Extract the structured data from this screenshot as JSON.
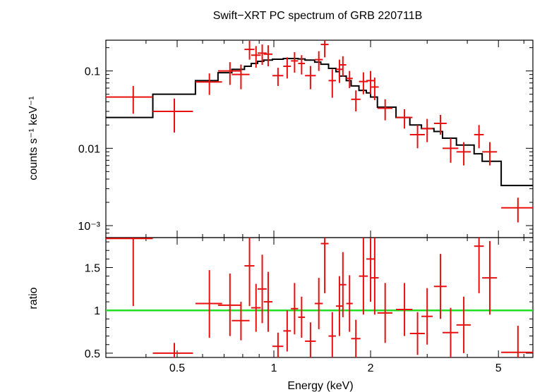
{
  "chart_data": [
    {
      "type": "line",
      "title": "Swift−XRT PC spectrum of GRB 220711B",
      "ylabel": "counts s⁻¹ keV⁻¹",
      "xlabel": "",
      "xscale": "log",
      "yscale": "log",
      "xlim": [
        0.3,
        6.4
      ],
      "ylim": [
        0.0007,
        0.25
      ],
      "yticks": [
        {
          "value": 0.1,
          "label": "0.1"
        },
        {
          "value": 0.01,
          "label": "0.01"
        },
        {
          "value": 0.001,
          "label": "10⁻³"
        }
      ],
      "colors": {
        "data": "#e8100f",
        "model": "#000000"
      },
      "data_points": [
        {
          "x": 0.365,
          "xlo": 0.3,
          "xhi": 0.42,
          "y": 0.046,
          "ylo": 0.028,
          "yhi": 0.064
        },
        {
          "x": 0.49,
          "xlo": 0.42,
          "xhi": 0.56,
          "y": 0.03,
          "ylo": 0.016,
          "yhi": 0.044
        },
        {
          "x": 0.63,
          "xlo": 0.57,
          "xhi": 0.69,
          "y": 0.072,
          "ylo": 0.049,
          "yhi": 0.093
        },
        {
          "x": 0.73,
          "xlo": 0.67,
          "xhi": 0.79,
          "y": 0.1,
          "ylo": 0.066,
          "yhi": 0.13
        },
        {
          "x": 0.79,
          "xlo": 0.74,
          "xhi": 0.84,
          "y": 0.09,
          "ylo": 0.058,
          "yhi": 0.121
        },
        {
          "x": 0.84,
          "xlo": 0.81,
          "xhi": 0.87,
          "y": 0.19,
          "ylo": 0.14,
          "yhi": 0.245
        },
        {
          "x": 0.88,
          "xlo": 0.85,
          "xhi": 0.91,
          "y": 0.16,
          "ylo": 0.11,
          "yhi": 0.21
        },
        {
          "x": 0.92,
          "xlo": 0.89,
          "xhi": 0.95,
          "y": 0.17,
          "ylo": 0.12,
          "yhi": 0.22
        },
        {
          "x": 0.96,
          "xlo": 0.93,
          "xhi": 0.99,
          "y": 0.165,
          "ylo": 0.115,
          "yhi": 0.215
        },
        {
          "x": 1.03,
          "xlo": 0.99,
          "xhi": 1.07,
          "y": 0.087,
          "ylo": 0.064,
          "yhi": 0.11
        },
        {
          "x": 1.1,
          "xlo": 1.07,
          "xhi": 1.13,
          "y": 0.115,
          "ylo": 0.08,
          "yhi": 0.15
        },
        {
          "x": 1.16,
          "xlo": 1.13,
          "xhi": 1.19,
          "y": 0.135,
          "ylo": 0.095,
          "yhi": 0.175
        },
        {
          "x": 1.22,
          "xlo": 1.19,
          "xhi": 1.25,
          "y": 0.125,
          "ylo": 0.09,
          "yhi": 0.16
        },
        {
          "x": 1.3,
          "xlo": 1.25,
          "xhi": 1.35,
          "y": 0.087,
          "ylo": 0.058,
          "yhi": 0.116
        },
        {
          "x": 1.38,
          "xlo": 1.34,
          "xhi": 1.42,
          "y": 0.14,
          "ylo": 0.1,
          "yhi": 0.18
        },
        {
          "x": 1.44,
          "xlo": 1.4,
          "xhi": 1.48,
          "y": 0.22,
          "ylo": 0.15,
          "yhi": 0.285
        },
        {
          "x": 1.52,
          "xlo": 1.48,
          "xhi": 1.56,
          "y": 0.075,
          "ylo": 0.045,
          "yhi": 0.105
        },
        {
          "x": 1.6,
          "xlo": 1.56,
          "xhi": 1.64,
          "y": 0.105,
          "ylo": 0.07,
          "yhi": 0.14
        },
        {
          "x": 1.64,
          "xlo": 1.6,
          "xhi": 1.68,
          "y": 0.12,
          "ylo": 0.085,
          "yhi": 0.155
        },
        {
          "x": 1.72,
          "xlo": 1.68,
          "xhi": 1.76,
          "y": 0.08,
          "ylo": 0.06,
          "yhi": 0.1
        },
        {
          "x": 1.8,
          "xlo": 1.74,
          "xhi": 1.86,
          "y": 0.043,
          "ylo": 0.03,
          "yhi": 0.056
        },
        {
          "x": 1.9,
          "xlo": 1.84,
          "xhi": 1.96,
          "y": 0.073,
          "ylo": 0.05,
          "yhi": 0.096
        },
        {
          "x": 2.0,
          "xlo": 1.94,
          "xhi": 2.06,
          "y": 0.075,
          "ylo": 0.05,
          "yhi": 0.1
        },
        {
          "x": 2.06,
          "xlo": 2.0,
          "xhi": 2.12,
          "y": 0.062,
          "ylo": 0.042,
          "yhi": 0.082
        },
        {
          "x": 2.22,
          "xlo": 2.1,
          "xhi": 2.34,
          "y": 0.033,
          "ylo": 0.023,
          "yhi": 0.043
        },
        {
          "x": 2.55,
          "xlo": 2.4,
          "xhi": 2.7,
          "y": 0.025,
          "ylo": 0.018,
          "yhi": 0.032
        },
        {
          "x": 2.8,
          "xlo": 2.65,
          "xhi": 2.95,
          "y": 0.015,
          "ylo": 0.01,
          "yhi": 0.02
        },
        {
          "x": 3.0,
          "xlo": 2.88,
          "xhi": 3.12,
          "y": 0.018,
          "ylo": 0.012,
          "yhi": 0.024
        },
        {
          "x": 3.3,
          "xlo": 3.15,
          "xhi": 3.45,
          "y": 0.021,
          "ylo": 0.015,
          "yhi": 0.027
        },
        {
          "x": 3.55,
          "xlo": 3.35,
          "xhi": 3.75,
          "y": 0.01,
          "ylo": 0.0065,
          "yhi": 0.0135
        },
        {
          "x": 3.9,
          "xlo": 3.7,
          "xhi": 4.1,
          "y": 0.009,
          "ylo": 0.006,
          "yhi": 0.012
        },
        {
          "x": 4.35,
          "xlo": 4.2,
          "xhi": 4.5,
          "y": 0.015,
          "ylo": 0.01,
          "yhi": 0.02
        },
        {
          "x": 4.7,
          "xlo": 4.45,
          "xhi": 4.95,
          "y": 0.009,
          "ylo": 0.006,
          "yhi": 0.012
        },
        {
          "x": 5.75,
          "xlo": 5.1,
          "xhi": 6.4,
          "y": 0.0017,
          "ylo": 0.0011,
          "yhi": 0.0023
        }
      ],
      "model_steps": [
        {
          "x0": 0.3,
          "x1": 0.42,
          "y": 0.025
        },
        {
          "x0": 0.42,
          "x1": 0.57,
          "y": 0.05
        },
        {
          "x0": 0.57,
          "x1": 0.67,
          "y": 0.075
        },
        {
          "x0": 0.67,
          "x1": 0.74,
          "y": 0.095
        },
        {
          "x0": 0.74,
          "x1": 0.81,
          "y": 0.105
        },
        {
          "x0": 0.81,
          "x1": 0.85,
          "y": 0.115
        },
        {
          "x0": 0.85,
          "x1": 0.89,
          "y": 0.125
        },
        {
          "x0": 0.89,
          "x1": 0.93,
          "y": 0.133
        },
        {
          "x0": 0.93,
          "x1": 0.99,
          "y": 0.138
        },
        {
          "x0": 0.99,
          "x1": 1.07,
          "y": 0.142
        },
        {
          "x0": 1.07,
          "x1": 1.19,
          "y": 0.145
        },
        {
          "x0": 1.19,
          "x1": 1.25,
          "y": 0.143
        },
        {
          "x0": 1.25,
          "x1": 1.34,
          "y": 0.138
        },
        {
          "x0": 1.34,
          "x1": 1.4,
          "y": 0.13
        },
        {
          "x0": 1.4,
          "x1": 1.48,
          "y": 0.122
        },
        {
          "x0": 1.48,
          "x1": 1.56,
          "y": 0.108
        },
        {
          "x0": 1.56,
          "x1": 1.6,
          "y": 0.098
        },
        {
          "x0": 1.6,
          "x1": 1.68,
          "y": 0.086
        },
        {
          "x0": 1.68,
          "x1": 1.74,
          "y": 0.075
        },
        {
          "x0": 1.74,
          "x1": 1.84,
          "y": 0.064
        },
        {
          "x0": 1.84,
          "x1": 1.94,
          "y": 0.056
        },
        {
          "x0": 1.94,
          "x1": 2.0,
          "y": 0.052
        },
        {
          "x0": 2.0,
          "x1": 2.1,
          "y": 0.046
        },
        {
          "x0": 2.1,
          "x1": 2.4,
          "y": 0.034
        },
        {
          "x0": 2.4,
          "x1": 2.65,
          "y": 0.025
        },
        {
          "x0": 2.65,
          "x1": 2.88,
          "y": 0.02
        },
        {
          "x0": 2.88,
          "x1": 3.15,
          "y": 0.018
        },
        {
          "x0": 3.15,
          "x1": 3.35,
          "y": 0.0165
        },
        {
          "x0": 3.35,
          "x1": 3.7,
          "y": 0.0135
        },
        {
          "x0": 3.7,
          "x1": 4.2,
          "y": 0.011
        },
        {
          "x0": 4.2,
          "x1": 4.45,
          "y": 0.0085
        },
        {
          "x0": 4.45,
          "x1": 5.1,
          "y": 0.0068
        },
        {
          "x0": 5.1,
          "x1": 6.4,
          "y": 0.0033
        }
      ]
    },
    {
      "type": "scatter",
      "title": "",
      "xlabel": "Energy (keV)",
      "ylabel": "ratio",
      "xscale": "log",
      "xlim": [
        0.3,
        6.4
      ],
      "ylim": [
        0.45,
        1.85
      ],
      "xticks": [
        {
          "value": 0.5,
          "label": "0.5"
        },
        {
          "value": 1,
          "label": "1"
        },
        {
          "value": 2,
          "label": "2"
        },
        {
          "value": 5,
          "label": "5"
        }
      ],
      "yticks": [
        {
          "value": 0.5,
          "label": "0.5"
        },
        {
          "value": 1,
          "label": "1"
        },
        {
          "value": 1.5,
          "label": "1.5"
        }
      ],
      "reference_line": 1,
      "colors": {
        "data": "#e8100f",
        "reference": "#22dd22"
      },
      "data_points": [
        {
          "x": 0.365,
          "xlo": 0.3,
          "xhi": 0.42,
          "y": 1.84,
          "ylo": 1.05,
          "yhi": 1.85
        },
        {
          "x": 0.49,
          "xlo": 0.42,
          "xhi": 0.56,
          "y": 0.5,
          "ylo": 0.45,
          "yhi": 0.62
        },
        {
          "x": 0.63,
          "xlo": 0.57,
          "xhi": 0.69,
          "y": 1.08,
          "ylo": 0.68,
          "yhi": 1.47
        },
        {
          "x": 0.73,
          "xlo": 0.67,
          "xhi": 0.79,
          "y": 1.06,
          "ylo": 0.7,
          "yhi": 1.43
        },
        {
          "x": 0.79,
          "xlo": 0.74,
          "xhi": 0.84,
          "y": 0.88,
          "ylo": 0.65,
          "yhi": 1.1
        },
        {
          "x": 0.84,
          "xlo": 0.81,
          "xhi": 0.87,
          "y": 1.52,
          "ylo": 1.05,
          "yhi": 1.85
        },
        {
          "x": 0.88,
          "xlo": 0.85,
          "xhi": 0.91,
          "y": 1.03,
          "ylo": 0.75,
          "yhi": 1.31
        },
        {
          "x": 0.92,
          "xlo": 0.89,
          "xhi": 0.95,
          "y": 1.25,
          "ylo": 0.85,
          "yhi": 1.65
        },
        {
          "x": 0.96,
          "xlo": 0.93,
          "xhi": 0.99,
          "y": 1.1,
          "ylo": 0.75,
          "yhi": 1.45
        },
        {
          "x": 1.03,
          "xlo": 0.99,
          "xhi": 1.07,
          "y": 0.58,
          "ylo": 0.45,
          "yhi": 0.74
        },
        {
          "x": 1.1,
          "xlo": 1.07,
          "xhi": 1.13,
          "y": 0.76,
          "ylo": 0.52,
          "yhi": 1.0
        },
        {
          "x": 1.16,
          "xlo": 1.13,
          "xhi": 1.19,
          "y": 1.02,
          "ylo": 0.72,
          "yhi": 1.32
        },
        {
          "x": 1.22,
          "xlo": 1.19,
          "xhi": 1.25,
          "y": 0.92,
          "ylo": 0.68,
          "yhi": 1.16
        },
        {
          "x": 1.3,
          "xlo": 1.25,
          "xhi": 1.35,
          "y": 0.64,
          "ylo": 0.45,
          "yhi": 0.86
        },
        {
          "x": 1.38,
          "xlo": 1.34,
          "xhi": 1.42,
          "y": 1.08,
          "ylo": 0.78,
          "yhi": 1.38
        },
        {
          "x": 1.44,
          "xlo": 1.4,
          "xhi": 1.48,
          "y": 1.78,
          "ylo": 1.2,
          "yhi": 1.85
        },
        {
          "x": 1.52,
          "xlo": 1.48,
          "xhi": 1.56,
          "y": 0.7,
          "ylo": 0.45,
          "yhi": 0.98
        },
        {
          "x": 1.6,
          "xlo": 1.56,
          "xhi": 1.64,
          "y": 1.05,
          "ylo": 0.7,
          "yhi": 1.4
        },
        {
          "x": 1.64,
          "xlo": 1.6,
          "xhi": 1.68,
          "y": 1.3,
          "ylo": 0.92,
          "yhi": 1.68
        },
        {
          "x": 1.72,
          "xlo": 1.68,
          "xhi": 1.76,
          "y": 1.08,
          "ylo": 0.75,
          "yhi": 1.41
        },
        {
          "x": 1.8,
          "xlo": 1.74,
          "xhi": 1.86,
          "y": 0.67,
          "ylo": 0.45,
          "yhi": 0.89
        },
        {
          "x": 1.9,
          "xlo": 1.84,
          "xhi": 1.96,
          "y": 1.4,
          "ylo": 0.95,
          "yhi": 1.85
        },
        {
          "x": 2.0,
          "xlo": 1.94,
          "xhi": 2.06,
          "y": 1.6,
          "ylo": 1.1,
          "yhi": 1.85
        },
        {
          "x": 2.06,
          "xlo": 2.0,
          "xhi": 2.12,
          "y": 1.38,
          "ylo": 0.95,
          "yhi": 1.85
        },
        {
          "x": 2.22,
          "xlo": 2.1,
          "xhi": 2.34,
          "y": 0.97,
          "ylo": 0.62,
          "yhi": 1.32
        },
        {
          "x": 2.55,
          "xlo": 2.4,
          "xhi": 2.7,
          "y": 1.01,
          "ylo": 0.7,
          "yhi": 1.32
        },
        {
          "x": 2.8,
          "xlo": 2.65,
          "xhi": 2.95,
          "y": 0.73,
          "ylo": 0.48,
          "yhi": 0.98
        },
        {
          "x": 3.0,
          "xlo": 2.88,
          "xhi": 3.12,
          "y": 0.93,
          "ylo": 0.6,
          "yhi": 1.26
        },
        {
          "x": 3.3,
          "xlo": 3.15,
          "xhi": 3.45,
          "y": 1.28,
          "ylo": 0.9,
          "yhi": 1.66
        },
        {
          "x": 3.55,
          "xlo": 3.35,
          "xhi": 3.75,
          "y": 0.74,
          "ylo": 0.45,
          "yhi": 1.03
        },
        {
          "x": 3.9,
          "xlo": 3.7,
          "xhi": 4.1,
          "y": 0.83,
          "ylo": 0.5,
          "yhi": 1.16
        },
        {
          "x": 4.35,
          "xlo": 4.2,
          "xhi": 4.5,
          "y": 1.75,
          "ylo": 1.2,
          "yhi": 1.85
        },
        {
          "x": 4.7,
          "xlo": 4.45,
          "xhi": 4.95,
          "y": 1.38,
          "ylo": 0.95,
          "yhi": 1.81
        },
        {
          "x": 5.75,
          "xlo": 5.1,
          "xhi": 6.4,
          "y": 0.51,
          "ylo": 0.45,
          "yhi": 0.82
        }
      ]
    }
  ]
}
